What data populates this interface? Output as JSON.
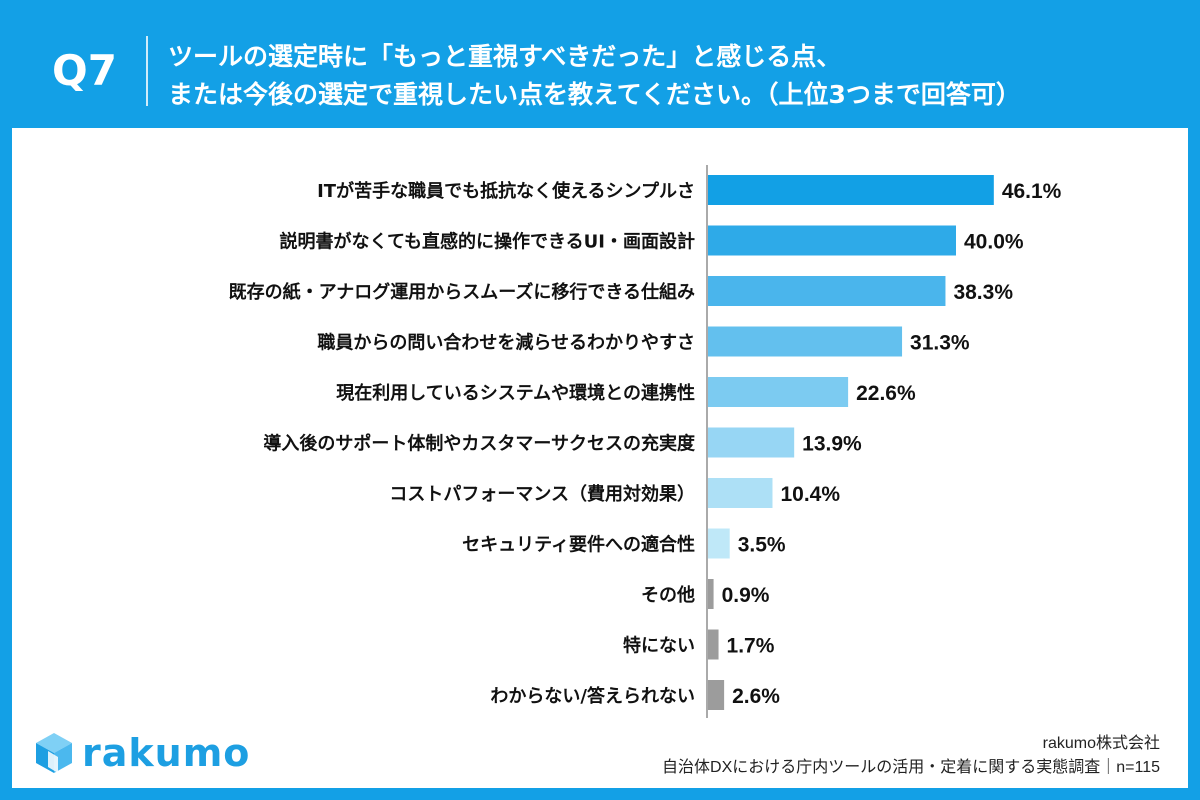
{
  "header": {
    "question_no": "Q7",
    "title_line1": "ツールの選定時に「もっと重視すべきだった」と感じる点、",
    "title_line2": "または今後の選定で重視したい点を教えてください。（上位3つまで回答可）"
  },
  "footer": {
    "logo_text": "rakumo",
    "company": "rakumo株式会社",
    "survey": "自治体DXにおける庁内ツールの活用・定着に関する実態調査｜n=115"
  },
  "colors": {
    "header_bg": "#13a0e6",
    "card_bg": "#ffffff",
    "axis": "#555555",
    "bar_text": "#111111"
  },
  "chart_data": {
    "type": "bar",
    "orientation": "horizontal",
    "title": "",
    "xlabel": "",
    "ylabel": "",
    "xlim": [
      0,
      50
    ],
    "grid": false,
    "legend": "none",
    "categories": [
      "ITが苦手な職員でも抵抗なく使えるシンプルさ",
      "説明書がなくても直感的に操作できるUI・画面設計",
      "既存の紙・アナログ運用からスムーズに移行できる仕組み",
      "職員からの問い合わせを減らせるわかりやすさ",
      "現在利用しているシステムや環境との連携性",
      "導入後のサポート体制やカスタマーサクセスの充実度",
      "コストパフォーマンス（費用対効果）",
      "セキュリティ要件への適合性",
      "その他",
      "特にない",
      "わからない/答えられない"
    ],
    "values": [
      46.1,
      40.0,
      38.3,
      31.3,
      22.6,
      13.9,
      10.4,
      3.5,
      0.9,
      1.7,
      2.6
    ],
    "value_labels": [
      "46.1%",
      "40.0%",
      "38.3%",
      "31.3%",
      "22.6%",
      "13.9%",
      "10.4%",
      "3.5%",
      "0.9%",
      "1.7%",
      "2.6%"
    ],
    "bar_colors": [
      "#12a0e5",
      "#2eaae8",
      "#4ab5ec",
      "#63c0ee",
      "#7ccbf1",
      "#97d6f4",
      "#ade0f6",
      "#bfe8f8",
      "#9c9c9c",
      "#9c9c9c",
      "#9c9c9c"
    ]
  }
}
